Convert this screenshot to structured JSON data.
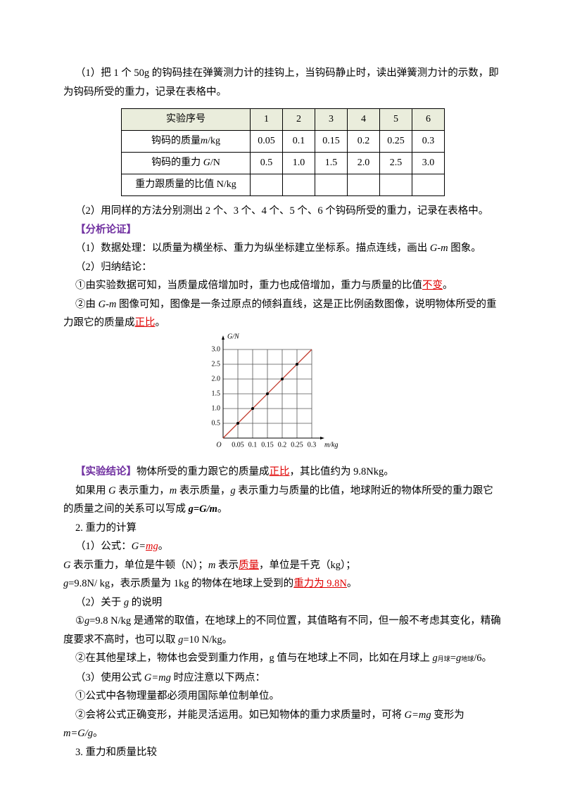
{
  "paragraphs": [
    [
      "（1）把 1 个 50g 的钩码挂在弹簧测力计的挂钩上，当钩码静止时，读出弹簧测力计的示数，即为钩码所受的重力，记录在表格中。"
    ],
    [
      "（2）用同样的方法分别测出 2 个、3 个、4 个、5 个、6 个钩码所受的重力，记录在表格中。"
    ],
    [
      "【分析论证】"
    ],
    [
      "（1）数据处理：以质量为横坐标、重力为纵坐标建立坐标系。描点连线，画出 ",
      "G-m",
      " 图象。"
    ],
    [
      "（2）归纳结论："
    ],
    [
      "①由实验数据可知，当质量成倍增加时，重力也成倍增加，重力与质量的比值",
      "不变",
      "。"
    ],
    [
      "②由 ",
      "G-m",
      " 图像可知，图像是一条过原点的倾斜直线，这是正比例函数图像，说明物体所受的重力跟它的质量成",
      "正比",
      "。"
    ],
    [
      "【实验结论】",
      "物体所受的重力跟它的质量成",
      "正比",
      "，其比值约为 9.8Nkg。"
    ],
    [
      "如果用 ",
      "G",
      " 表示重力，",
      "m",
      " 表示质量，",
      "g",
      " 表示重力与质量的比值，地球附近的物体所受的重力跟它的质量之间的关系可以写成 ",
      "g=G/m",
      "。"
    ],
    [
      "2. 重力的计算"
    ],
    [
      "（1）公式：",
      "G=",
      "mg",
      "。"
    ],
    [
      "G",
      " 表示重力，单位是牛顿（N）；",
      "m",
      " 表示",
      "质量",
      "，单位是千克（kg）；"
    ],
    [
      "g",
      "=9.8N/ kg，表示质量为 1kg 的物体在地球上受到的",
      "重力为 9.8N",
      "。"
    ],
    [
      "（2）关于 ",
      "g",
      " 的说明"
    ],
    [
      "①",
      "g",
      "=9.8  N/kg 是通常的取值，在地球上的不同位置，其值略有不同，但一般不考虑其变化，精确度要求不高时，也可以取 ",
      "g",
      "=10  N/kg。"
    ],
    [
      "②在其他星球上，物体也会受到重力作用，g 值与在地球上不同，比如在月球上 ",
      "g",
      "月球",
      "=",
      "g",
      "地球",
      "/6。"
    ],
    [
      "（3）使用公式 ",
      "G=mg",
      " 时应注意以下两点："
    ],
    [
      "①公式中各物理量都必须用国际单位制单位。"
    ],
    [
      "②会将公式正确变形，并能灵活运用。如已知物体的重力求质量时，可将 ",
      "G=mg",
      " 变形为 ",
      "m=G/g",
      "。"
    ],
    [
      "3. 重力和质量比较"
    ]
  ],
  "table": {
    "header": [
      "实验序号",
      "1",
      "2",
      "3",
      "4",
      "5",
      "6"
    ],
    "rows": [
      {
        "label": [
          "钩码的质量",
          "m",
          "/kg"
        ],
        "cells": [
          "0.05",
          "0.1",
          "0.15",
          "0.2",
          "0.25",
          "0.3"
        ]
      },
      {
        "label": [
          "钩码的重力 ",
          "G",
          "/N"
        ],
        "cells": [
          "0.5",
          "1.0",
          "1.5",
          "2.0",
          "2.5",
          "3.0"
        ]
      },
      {
        "label": [
          "重力跟质量的比值  N/kg"
        ]
      }
    ]
  },
  "chart_data": {
    "type": "scatter",
    "xlabel": "m/kg",
    "ylabel": "G/N",
    "origin_label": "O",
    "series": [
      {
        "x": [
          0.05,
          0.1,
          0.15,
          0.2,
          0.25
        ],
        "values": [
          0.5,
          1,
          1.5,
          2,
          2.5
        ],
        "color": "#000000",
        "mode": "markers"
      },
      {
        "x": [
          0,
          0.3
        ],
        "values": [
          0,
          3
        ],
        "color": "#c0392b",
        "mode": "line"
      }
    ],
    "xlim": [
      0,
      0.3
    ],
    "ylim": [
      0,
      3
    ],
    "xticks": [
      0.05,
      0.1,
      0.15,
      0.2,
      0.25,
      0.3
    ],
    "yticks": [
      0.5,
      {
        "value": 1,
        "label": "1.0"
      },
      1.5,
      {
        "value": 2,
        "label": "2.0"
      },
      2.5,
      {
        "value": 3,
        "label": "3.0"
      }
    ],
    "grid": true
  }
}
